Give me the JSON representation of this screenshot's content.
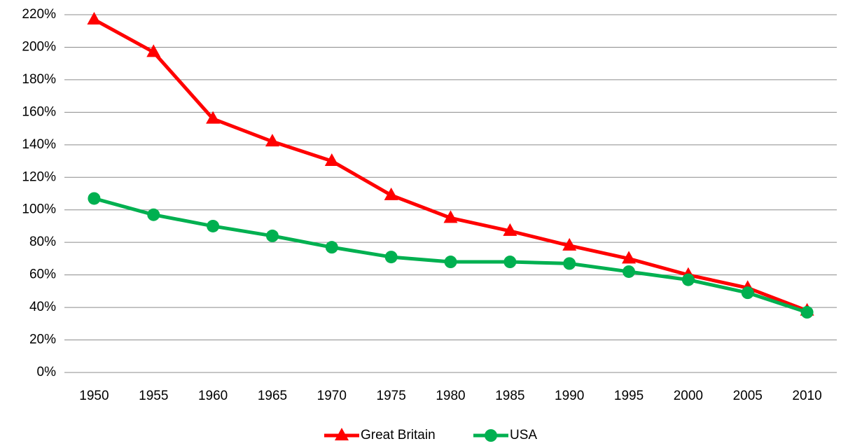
{
  "chart_data": {
    "type": "line",
    "categories": [
      "1950",
      "1955",
      "1960",
      "1965",
      "1970",
      "1975",
      "1980",
      "1985",
      "1990",
      "1995",
      "2000",
      "2005",
      "2010"
    ],
    "series": [
      {
        "name": "Great Britain",
        "color": "#ff0000",
        "marker": "triangle",
        "values": [
          217,
          197,
          156,
          142,
          130,
          109,
          95,
          87,
          78,
          70,
          60,
          52,
          38
        ]
      },
      {
        "name": "USA",
        "color": "#00b050",
        "marker": "circle",
        "values": [
          107,
          97,
          90,
          84,
          77,
          71,
          68,
          68,
          67,
          62,
          57,
          49,
          37
        ]
      }
    ],
    "ylim": [
      0,
      220
    ],
    "yticks": [
      {
        "value": 0,
        "label": "0%"
      },
      {
        "value": 20,
        "label": "20%"
      },
      {
        "value": 40,
        "label": "40%"
      },
      {
        "value": 60,
        "label": "60%"
      },
      {
        "value": 80,
        "label": "80%"
      },
      {
        "value": 100,
        "label": "100%"
      },
      {
        "value": 120,
        "label": "120%"
      },
      {
        "value": 140,
        "label": "140%"
      },
      {
        "value": 160,
        "label": "160%"
      },
      {
        "value": 180,
        "label": "180%"
      },
      {
        "value": 200,
        "label": "200%"
      },
      {
        "value": 220,
        "label": "220%"
      }
    ],
    "grid": true,
    "legend": "bottom"
  }
}
